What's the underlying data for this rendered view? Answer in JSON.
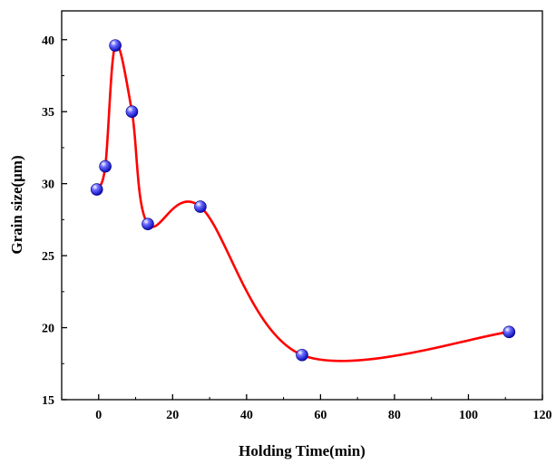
{
  "chart_data": {
    "type": "scatter",
    "title": "",
    "xlabel": "Holding Time(min)",
    "ylabel": "Grain size(μm)",
    "xlim": [
      -10,
      120
    ],
    "ylim": [
      15,
      42
    ],
    "x_ticks": [
      0,
      20,
      40,
      60,
      80,
      100,
      120
    ],
    "y_ticks": [
      15,
      20,
      25,
      30,
      35,
      40
    ],
    "grid": false,
    "legend": "none",
    "series": [
      {
        "points": [
          {
            "x": -0.5,
            "y": 29.6
          },
          {
            "x": 1.8,
            "y": 31.2
          },
          {
            "x": 4.5,
            "y": 39.6
          },
          {
            "x": 9.0,
            "y": 35.0
          },
          {
            "x": 13.3,
            "y": 27.2
          },
          {
            "x": 27.5,
            "y": 28.4
          },
          {
            "x": 55.0,
            "y": 18.1
          },
          {
            "x": 111.0,
            "y": 19.7
          }
        ],
        "marker_color": "#1a1aff",
        "curve_color": "#ff0000",
        "curve": "smooth-spline"
      }
    ]
  }
}
